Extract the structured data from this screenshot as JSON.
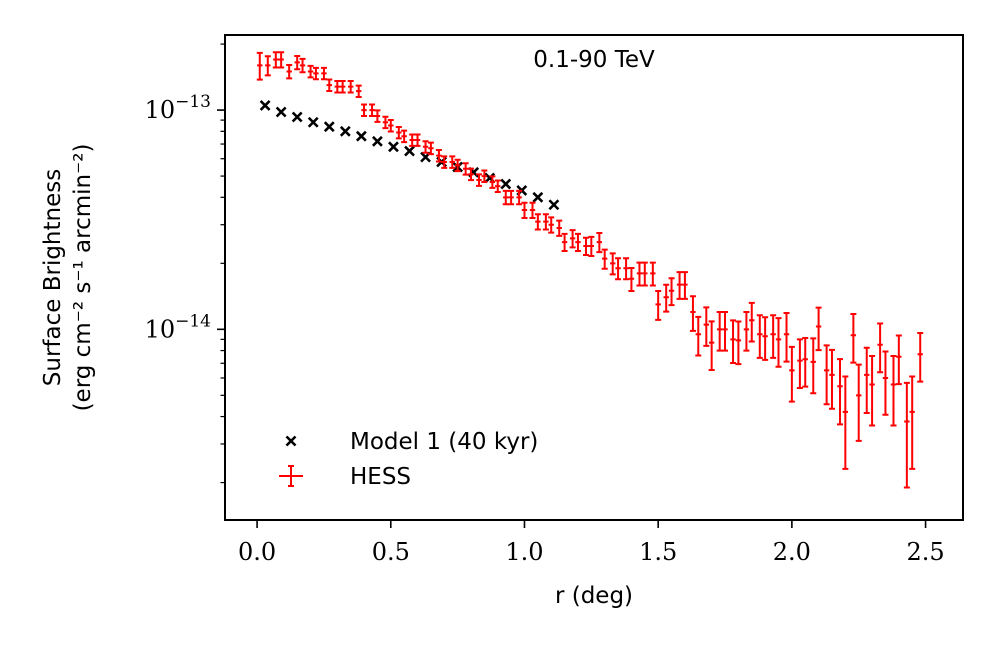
{
  "chart_data": {
    "type": "scatter",
    "title": "0.1-90 TeV",
    "xlabel": "r (deg)",
    "ylabel_line1": "Surface Brightness",
    "ylabel_line2": "(erg cm⁻² s⁻¹ arcmin⁻²)",
    "xlim": [
      -0.12,
      2.64
    ],
    "ylim": [
      1.35e-15,
      2.2e-13
    ],
    "yscale": "log",
    "x_ticks": [
      0.0,
      0.5,
      1.0,
      1.5,
      2.0,
      2.5
    ],
    "x_tick_labels": [
      "0.0",
      "0.5",
      "1.0",
      "1.5",
      "2.0",
      "2.5"
    ],
    "y_major_ticks": [
      1e-14,
      1e-13
    ],
    "y_tick_labels": [
      {
        "base": "10",
        "exp": "−14"
      },
      {
        "base": "10",
        "exp": "−13"
      }
    ],
    "y_minor_ticks": [
      2e-15,
      3e-15,
      4e-15,
      5e-15,
      6e-15,
      7e-15,
      8e-15,
      9e-15,
      2e-14,
      3e-14,
      4e-14,
      5e-14,
      6e-14,
      7e-14,
      8e-14,
      9e-14,
      2e-13
    ],
    "legend_position": "lower-left",
    "series": [
      {
        "name": "Model 1 (40 kyr)",
        "marker": "x",
        "color": "#000000",
        "x": [
          0.03,
          0.09,
          0.15,
          0.21,
          0.27,
          0.33,
          0.39,
          0.45,
          0.51,
          0.57,
          0.63,
          0.69,
          0.75,
          0.81,
          0.87,
          0.93,
          0.99,
          1.05,
          1.11
        ],
        "y": [
          1.05e-13,
          9.8e-14,
          9.3e-14,
          8.8e-14,
          8.4e-14,
          8e-14,
          7.6e-14,
          7.2e-14,
          6.8e-14,
          6.5e-14,
          6.1e-14,
          5.8e-14,
          5.5e-14,
          5.2e-14,
          4.9e-14,
          4.6e-14,
          4.3e-14,
          4e-14,
          3.7e-14
        ]
      },
      {
        "name": "HESS",
        "marker": "errorbar",
        "color": "#ff0000",
        "x": [
          0.01,
          0.04,
          0.07,
          0.09,
          0.12,
          0.15,
          0.17,
          0.2,
          0.22,
          0.25,
          0.27,
          0.3,
          0.32,
          0.35,
          0.38,
          0.4,
          0.43,
          0.45,
          0.48,
          0.5,
          0.53,
          0.55,
          0.58,
          0.6,
          0.63,
          0.65,
          0.68,
          0.7,
          0.73,
          0.75,
          0.78,
          0.8,
          0.83,
          0.85,
          0.88,
          0.9,
          0.93,
          0.95,
          0.98,
          1.0,
          1.03,
          1.05,
          1.08,
          1.1,
          1.13,
          1.15,
          1.18,
          1.2,
          1.23,
          1.25,
          1.28,
          1.3,
          1.33,
          1.35,
          1.38,
          1.4,
          1.43,
          1.45,
          1.48,
          1.5,
          1.53,
          1.55,
          1.58,
          1.6,
          1.63,
          1.65,
          1.68,
          1.7,
          1.73,
          1.75,
          1.78,
          1.8,
          1.83,
          1.85,
          1.88,
          1.9,
          1.93,
          1.95,
          1.98,
          2.0,
          2.03,
          2.05,
          2.08,
          2.1,
          2.13,
          2.15,
          2.18,
          2.2,
          2.23,
          2.25,
          2.28,
          2.3,
          2.33,
          2.35,
          2.38,
          2.4,
          2.43,
          2.45,
          2.48
        ],
        "y": [
          1.6e-13,
          1.6e-13,
          1.7e-13,
          1.7e-13,
          1.5e-13,
          1.65e-13,
          1.6e-13,
          1.5e-13,
          1.47e-13,
          1.47e-13,
          1.3e-13,
          1.28e-13,
          1.28e-13,
          1.28e-13,
          1.22e-13,
          1e-13,
          1e-13,
          9.4e-14,
          8.8e-14,
          8.5e-14,
          7.9e-14,
          7.6e-14,
          7.3e-14,
          7.3e-14,
          6.8e-14,
          6.7e-14,
          6.2e-14,
          5.8e-14,
          5.8e-14,
          5.6e-14,
          5.4e-14,
          5.1e-14,
          4.8e-14,
          5e-14,
          4.7e-14,
          4.5e-14,
          4e-14,
          4e-14,
          4e-14,
          3.5e-14,
          3.5e-14,
          3.1e-14,
          3.1e-14,
          3e-14,
          2.9e-14,
          2.5e-14,
          2.6e-14,
          2.5e-14,
          2.4e-14,
          2.4e-14,
          2.5e-14,
          2.1e-14,
          2e-14,
          1.9e-14,
          1.9e-14,
          1.7e-14,
          1.8e-14,
          1.8e-14,
          1.8e-14,
          1.3e-14,
          1.4e-14,
          1.5e-14,
          1.6e-14,
          1.6e-14,
          1.2e-14,
          9.5e-15,
          1.05e-14,
          8.7e-15,
          1e-14,
          1e-14,
          9e-15,
          8.9e-15,
          1e-14,
          1.1e-14,
          9.5e-15,
          9.3e-15,
          9.5e-15,
          9e-15,
          9.5e-15,
          6.5e-15,
          7.2e-15,
          7.3e-15,
          7.1e-15,
          1.03e-14,
          6.5e-15,
          6.2e-15,
          5.5e-15,
          4.2e-15,
          9.4e-15,
          5e-15,
          6.2e-15,
          5.6e-15,
          8.5e-15,
          6e-15,
          5.6e-15,
          7.5e-15,
          3.8e-15,
          4.2e-15,
          7.7e-15
        ],
        "yerr_rel": [
          0.14,
          0.1,
          0.08,
          0.08,
          0.07,
          0.07,
          0.07,
          0.06,
          0.06,
          0.06,
          0.06,
          0.06,
          0.06,
          0.06,
          0.06,
          0.06,
          0.06,
          0.06,
          0.06,
          0.06,
          0.06,
          0.06,
          0.06,
          0.06,
          0.06,
          0.06,
          0.06,
          0.06,
          0.06,
          0.06,
          0.06,
          0.06,
          0.06,
          0.06,
          0.06,
          0.06,
          0.07,
          0.07,
          0.07,
          0.08,
          0.08,
          0.08,
          0.08,
          0.08,
          0.08,
          0.09,
          0.09,
          0.09,
          0.09,
          0.1,
          0.1,
          0.1,
          0.11,
          0.11,
          0.11,
          0.12,
          0.12,
          0.12,
          0.12,
          0.15,
          0.14,
          0.14,
          0.14,
          0.14,
          0.18,
          0.2,
          0.2,
          0.25,
          0.2,
          0.2,
          0.22,
          0.22,
          0.2,
          0.2,
          0.22,
          0.22,
          0.22,
          0.25,
          0.25,
          0.28,
          0.25,
          0.25,
          0.28,
          0.22,
          0.3,
          0.3,
          0.33,
          0.45,
          0.25,
          0.38,
          0.33,
          0.35,
          0.25,
          0.32,
          0.35,
          0.25,
          0.5,
          0.45,
          0.25
        ],
        "xerr": 0.01
      }
    ]
  }
}
